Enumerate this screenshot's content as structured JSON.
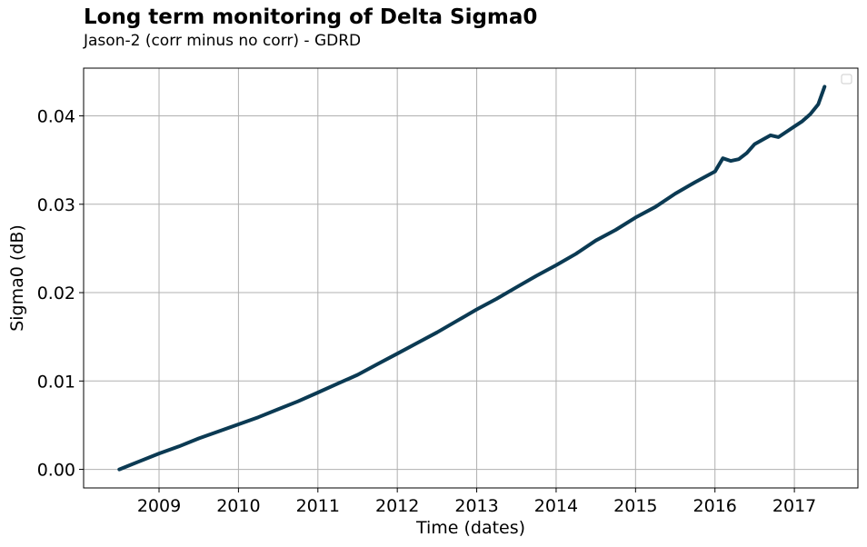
{
  "chart_data": {
    "type": "line",
    "title": "Long term monitoring of Delta Sigma0",
    "subtitle": "Jason-2 (corr minus no corr) - GDRD",
    "xlabel": "Time (dates)",
    "ylabel": "Sigma0 (dB)",
    "xlim": [
      2008.05,
      2017.8
    ],
    "ylim": [
      -0.0021,
      0.0454
    ],
    "x_ticks": [
      2009,
      2010,
      2011,
      2012,
      2013,
      2014,
      2015,
      2016,
      2017
    ],
    "x_tick_labels": [
      "2009",
      "2010",
      "2011",
      "2012",
      "2013",
      "2014",
      "2015",
      "2016",
      "2017"
    ],
    "y_ticks": [
      0.0,
      0.01,
      0.02,
      0.03,
      0.04
    ],
    "y_tick_labels": [
      "0.00",
      "0.01",
      "0.02",
      "0.03",
      "0.04"
    ],
    "grid": true,
    "legend": {
      "placement": "top-right",
      "entries": []
    },
    "series": [
      {
        "color": "#0b3a53",
        "x": [
          2008.5,
          2008.75,
          2009.0,
          2009.25,
          2009.5,
          2009.75,
          2010.0,
          2010.25,
          2010.5,
          2010.75,
          2011.0,
          2011.25,
          2011.5,
          2011.75,
          2012.0,
          2012.25,
          2012.5,
          2012.75,
          2013.0,
          2013.25,
          2013.5,
          2013.75,
          2014.0,
          2014.25,
          2014.5,
          2014.75,
          2015.0,
          2015.25,
          2015.5,
          2015.75,
          2016.0,
          2016.1,
          2016.2,
          2016.3,
          2016.4,
          2016.5,
          2016.6,
          2016.7,
          2016.8,
          2016.9,
          2017.0,
          2017.1,
          2017.2,
          2017.3,
          2017.38
        ],
        "y": [
          0.0,
          0.0009,
          0.0018,
          0.0026,
          0.0035,
          0.0043,
          0.0051,
          0.0059,
          0.0068,
          0.0077,
          0.0087,
          0.0097,
          0.0107,
          0.0119,
          0.0131,
          0.0143,
          0.0155,
          0.0168,
          0.0181,
          0.0193,
          0.0206,
          0.0219,
          0.0231,
          0.0244,
          0.0259,
          0.0271,
          0.0285,
          0.0297,
          0.0312,
          0.0325,
          0.0337,
          0.0352,
          0.0349,
          0.0351,
          0.0358,
          0.0368,
          0.0373,
          0.0378,
          0.0376,
          0.0382,
          0.0388,
          0.0394,
          0.0402,
          0.0413,
          0.0433
        ]
      }
    ]
  }
}
